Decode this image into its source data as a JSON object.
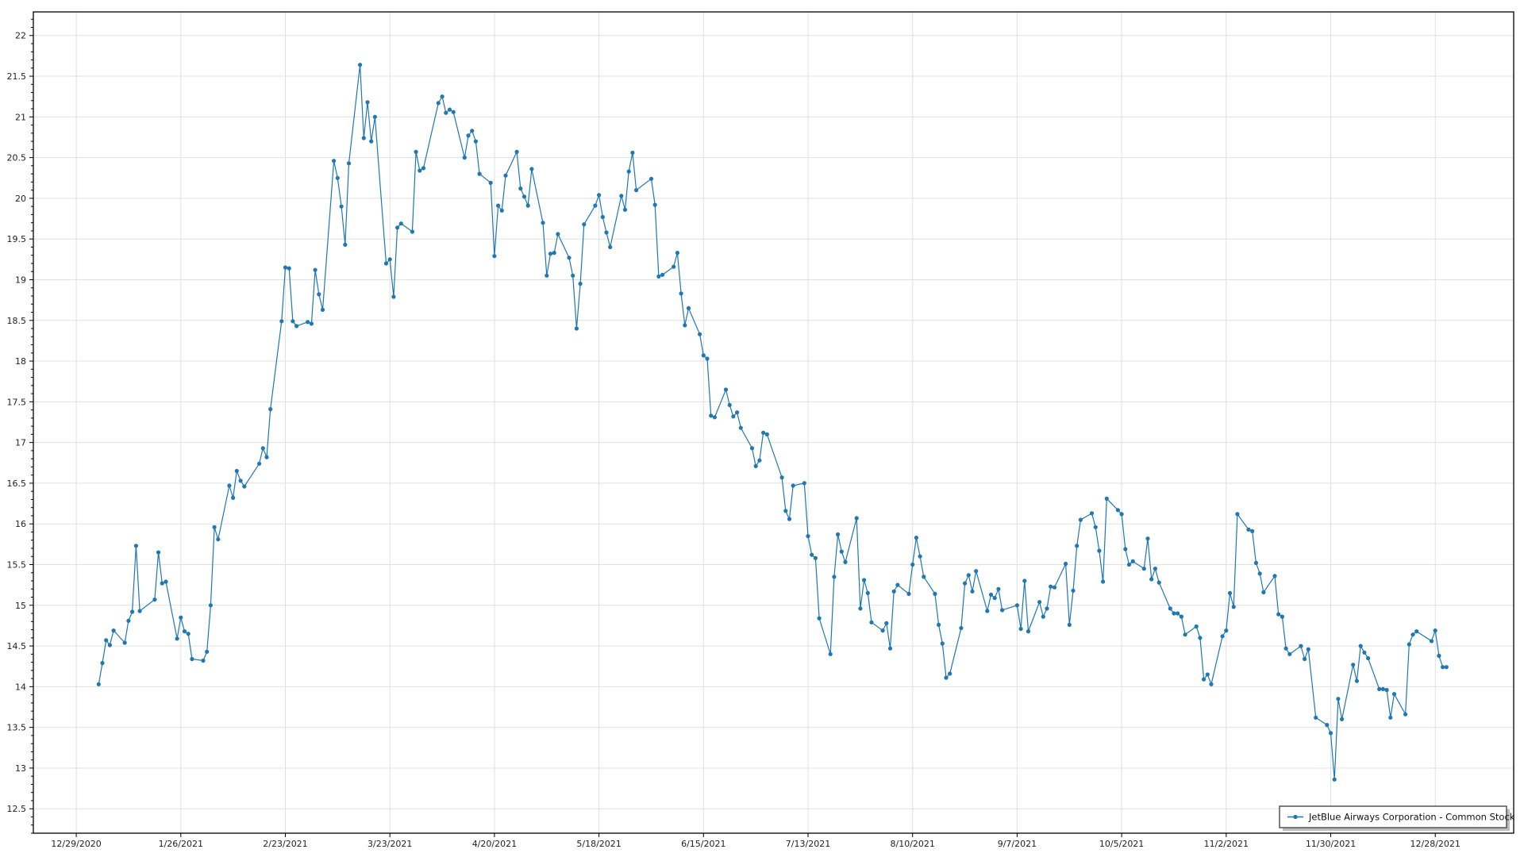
{
  "chart_data": {
    "type": "line",
    "title": "",
    "xlabel": "",
    "ylabel": "",
    "x_type": "date",
    "xlim": [
      "2020-12-17T12:00:00",
      "2022-01-18T00:00:00"
    ],
    "ylim": [
      12.2,
      22.29
    ],
    "grid": true,
    "legend_placement": "bottom-right",
    "colors": {
      "series": "#1f77b4",
      "grid": "#e0e0e0",
      "axis": "#000000"
    },
    "x_ticks": [
      "12/29/2020",
      "1/26/2021",
      "2/23/2021",
      "3/23/2021",
      "4/20/2021",
      "5/18/2021",
      "6/15/2021",
      "7/13/2021",
      "8/10/2021",
      "9/7/2021",
      "10/5/2021",
      "11/2/2021",
      "11/30/2021",
      "12/28/2021"
    ],
    "y_ticks": [
      "12.5",
      "13",
      "13.5",
      "14",
      "14.5",
      "15",
      "15.5",
      "16",
      "16.5",
      "17",
      "17.5",
      "18",
      "18.5",
      "19",
      "19.5",
      "20",
      "20.5",
      "21",
      "21.5",
      "22"
    ],
    "series": [
      {
        "name": "JetBlue Airways Corporation - Common Stock",
        "marker": "circle",
        "points": [
          [
            "2021-01-04",
            14.03
          ],
          [
            "2021-01-05",
            14.29
          ],
          [
            "2021-01-06",
            14.57
          ],
          [
            "2021-01-07",
            14.51
          ],
          [
            "2021-01-08",
            14.69
          ],
          [
            "2021-01-11",
            14.54
          ],
          [
            "2021-01-12",
            14.81
          ],
          [
            "2021-01-13",
            14.92
          ],
          [
            "2021-01-14",
            15.73
          ],
          [
            "2021-01-15",
            14.93
          ],
          [
            "2021-01-19",
            15.07
          ],
          [
            "2021-01-20",
            15.65
          ],
          [
            "2021-01-21",
            15.27
          ],
          [
            "2021-01-22",
            15.29
          ],
          [
            "2021-01-25",
            14.59
          ],
          [
            "2021-01-26",
            14.85
          ],
          [
            "2021-01-27",
            14.68
          ],
          [
            "2021-01-28",
            14.65
          ],
          [
            "2021-01-29",
            14.34
          ],
          [
            "2021-02-01",
            14.32
          ],
          [
            "2021-02-02",
            14.43
          ],
          [
            "2021-02-03",
            15.0
          ],
          [
            "2021-02-04",
            15.96
          ],
          [
            "2021-02-05",
            15.81
          ],
          [
            "2021-02-08",
            16.47
          ],
          [
            "2021-02-09",
            16.32
          ],
          [
            "2021-02-10",
            16.65
          ],
          [
            "2021-02-11",
            16.53
          ],
          [
            "2021-02-12",
            16.46
          ],
          [
            "2021-02-16",
            16.74
          ],
          [
            "2021-02-17",
            16.93
          ],
          [
            "2021-02-18",
            16.82
          ],
          [
            "2021-02-19",
            17.41
          ],
          [
            "2021-02-22",
            18.49
          ],
          [
            "2021-02-23",
            19.15
          ],
          [
            "2021-02-24",
            19.14
          ],
          [
            "2021-02-25",
            18.49
          ],
          [
            "2021-02-26",
            18.43
          ],
          [
            "2021-03-01",
            18.48
          ],
          [
            "2021-03-02",
            18.46
          ],
          [
            "2021-03-03",
            19.12
          ],
          [
            "2021-03-04",
            18.82
          ],
          [
            "2021-03-05",
            18.63
          ],
          [
            "2021-03-08",
            20.46
          ],
          [
            "2021-03-09",
            20.25
          ],
          [
            "2021-03-10",
            19.9
          ],
          [
            "2021-03-11",
            19.43
          ],
          [
            "2021-03-12",
            20.43
          ],
          [
            "2021-03-15",
            21.64
          ],
          [
            "2021-03-16",
            20.74
          ],
          [
            "2021-03-17",
            21.18
          ],
          [
            "2021-03-18",
            20.7
          ],
          [
            "2021-03-19",
            21.0
          ],
          [
            "2021-03-22",
            19.2
          ],
          [
            "2021-03-23",
            19.25
          ],
          [
            "2021-03-24",
            18.79
          ],
          [
            "2021-03-25",
            19.64
          ],
          [
            "2021-03-26",
            19.69
          ],
          [
            "2021-03-29",
            19.59
          ],
          [
            "2021-03-30",
            20.57
          ],
          [
            "2021-03-31",
            20.34
          ],
          [
            "2021-04-01",
            20.37
          ],
          [
            "2021-04-05",
            21.17
          ],
          [
            "2021-04-06",
            21.25
          ],
          [
            "2021-04-07",
            21.05
          ],
          [
            "2021-04-08",
            21.09
          ],
          [
            "2021-04-09",
            21.06
          ],
          [
            "2021-04-12",
            20.5
          ],
          [
            "2021-04-13",
            20.77
          ],
          [
            "2021-04-14",
            20.83
          ],
          [
            "2021-04-15",
            20.7
          ],
          [
            "2021-04-16",
            20.3
          ],
          [
            "2021-04-19",
            20.19
          ],
          [
            "2021-04-20",
            19.29
          ],
          [
            "2021-04-21",
            19.91
          ],
          [
            "2021-04-22",
            19.85
          ],
          [
            "2021-04-23",
            20.28
          ],
          [
            "2021-04-26",
            20.57
          ],
          [
            "2021-04-27",
            20.12
          ],
          [
            "2021-04-28",
            20.02
          ],
          [
            "2021-04-29",
            19.91
          ],
          [
            "2021-04-30",
            20.36
          ],
          [
            "2021-05-03",
            19.7
          ],
          [
            "2021-05-04",
            19.05
          ],
          [
            "2021-05-05",
            19.32
          ],
          [
            "2021-05-06",
            19.33
          ],
          [
            "2021-05-07",
            19.56
          ],
          [
            "2021-05-10",
            19.27
          ],
          [
            "2021-05-11",
            19.05
          ],
          [
            "2021-05-12",
            18.4
          ],
          [
            "2021-05-13",
            18.95
          ],
          [
            "2021-05-14",
            19.68
          ],
          [
            "2021-05-17",
            19.91
          ],
          [
            "2021-05-18",
            20.04
          ],
          [
            "2021-05-19",
            19.77
          ],
          [
            "2021-05-20",
            19.58
          ],
          [
            "2021-05-21",
            19.4
          ],
          [
            "2021-05-24",
            20.03
          ],
          [
            "2021-05-25",
            19.86
          ],
          [
            "2021-05-26",
            20.33
          ],
          [
            "2021-05-27",
            20.56
          ],
          [
            "2021-05-28",
            20.1
          ],
          [
            "2021-06-01",
            20.24
          ],
          [
            "2021-06-02",
            19.92
          ],
          [
            "2021-06-03",
            19.04
          ],
          [
            "2021-06-04",
            19.06
          ],
          [
            "2021-06-07",
            19.16
          ],
          [
            "2021-06-08",
            19.33
          ],
          [
            "2021-06-09",
            18.83
          ],
          [
            "2021-06-10",
            18.44
          ],
          [
            "2021-06-11",
            18.65
          ],
          [
            "2021-06-14",
            18.33
          ],
          [
            "2021-06-15",
            18.07
          ],
          [
            "2021-06-16",
            18.03
          ],
          [
            "2021-06-17",
            17.33
          ],
          [
            "2021-06-18",
            17.31
          ],
          [
            "2021-06-21",
            17.65
          ],
          [
            "2021-06-22",
            17.46
          ],
          [
            "2021-06-23",
            17.32
          ],
          [
            "2021-06-24",
            17.37
          ],
          [
            "2021-06-25",
            17.18
          ],
          [
            "2021-06-28",
            16.93
          ],
          [
            "2021-06-29",
            16.71
          ],
          [
            "2021-06-30",
            16.78
          ],
          [
            "2021-07-01",
            17.12
          ],
          [
            "2021-07-02",
            17.1
          ],
          [
            "2021-07-06",
            16.57
          ],
          [
            "2021-07-07",
            16.16
          ],
          [
            "2021-07-08",
            16.06
          ],
          [
            "2021-07-09",
            16.47
          ],
          [
            "2021-07-12",
            16.5
          ],
          [
            "2021-07-13",
            15.85
          ],
          [
            "2021-07-14",
            15.62
          ],
          [
            "2021-07-15",
            15.58
          ],
          [
            "2021-07-16",
            14.84
          ],
          [
            "2021-07-19",
            14.4
          ],
          [
            "2021-07-20",
            15.35
          ],
          [
            "2021-07-21",
            15.87
          ],
          [
            "2021-07-22",
            15.66
          ],
          [
            "2021-07-23",
            15.53
          ],
          [
            "2021-07-26",
            16.07
          ],
          [
            "2021-07-27",
            14.96
          ],
          [
            "2021-07-28",
            15.31
          ],
          [
            "2021-07-29",
            15.15
          ],
          [
            "2021-07-30",
            14.79
          ],
          [
            "2021-08-02",
            14.69
          ],
          [
            "2021-08-03",
            14.78
          ],
          [
            "2021-08-04",
            14.47
          ],
          [
            "2021-08-05",
            15.17
          ],
          [
            "2021-08-06",
            15.25
          ],
          [
            "2021-08-09",
            15.14
          ],
          [
            "2021-08-10",
            15.5
          ],
          [
            "2021-08-11",
            15.83
          ],
          [
            "2021-08-12",
            15.6
          ],
          [
            "2021-08-13",
            15.35
          ],
          [
            "2021-08-16",
            15.14
          ],
          [
            "2021-08-17",
            14.76
          ],
          [
            "2021-08-18",
            14.53
          ],
          [
            "2021-08-19",
            14.11
          ],
          [
            "2021-08-20",
            14.16
          ],
          [
            "2021-08-23",
            14.72
          ],
          [
            "2021-08-24",
            15.27
          ],
          [
            "2021-08-25",
            15.37
          ],
          [
            "2021-08-26",
            15.17
          ],
          [
            "2021-08-27",
            15.42
          ],
          [
            "2021-08-30",
            14.93
          ],
          [
            "2021-08-31",
            15.13
          ],
          [
            "2021-09-01",
            15.09
          ],
          [
            "2021-09-02",
            15.2
          ],
          [
            "2021-09-03",
            14.94
          ],
          [
            "2021-09-07",
            15.0
          ],
          [
            "2021-09-08",
            14.71
          ],
          [
            "2021-09-09",
            15.3
          ],
          [
            "2021-09-10",
            14.68
          ],
          [
            "2021-09-13",
            15.04
          ],
          [
            "2021-09-14",
            14.86
          ],
          [
            "2021-09-15",
            14.96
          ],
          [
            "2021-09-16",
            15.23
          ],
          [
            "2021-09-17",
            15.22
          ],
          [
            "2021-09-20",
            15.51
          ],
          [
            "2021-09-21",
            14.76
          ],
          [
            "2021-09-22",
            15.18
          ],
          [
            "2021-09-23",
            15.73
          ],
          [
            "2021-09-24",
            16.05
          ],
          [
            "2021-09-27",
            16.13
          ],
          [
            "2021-09-28",
            15.96
          ],
          [
            "2021-09-29",
            15.67
          ],
          [
            "2021-09-30",
            15.29
          ],
          [
            "2021-10-01",
            16.31
          ],
          [
            "2021-10-04",
            16.17
          ],
          [
            "2021-10-05",
            16.12
          ],
          [
            "2021-10-06",
            15.69
          ],
          [
            "2021-10-07",
            15.5
          ],
          [
            "2021-10-08",
            15.54
          ],
          [
            "2021-10-11",
            15.45
          ],
          [
            "2021-10-12",
            15.82
          ],
          [
            "2021-10-13",
            15.32
          ],
          [
            "2021-10-14",
            15.45
          ],
          [
            "2021-10-15",
            15.28
          ],
          [
            "2021-10-18",
            14.96
          ],
          [
            "2021-10-19",
            14.9
          ],
          [
            "2021-10-20",
            14.9
          ],
          [
            "2021-10-21",
            14.86
          ],
          [
            "2021-10-22",
            14.64
          ],
          [
            "2021-10-25",
            14.74
          ],
          [
            "2021-10-26",
            14.6
          ],
          [
            "2021-10-27",
            14.09
          ],
          [
            "2021-10-28",
            14.15
          ],
          [
            "2021-10-29",
            14.03
          ],
          [
            "2021-11-01",
            14.62
          ],
          [
            "2021-11-02",
            14.69
          ],
          [
            "2021-11-03",
            15.15
          ],
          [
            "2021-11-04",
            14.98
          ],
          [
            "2021-11-05",
            16.12
          ],
          [
            "2021-11-08",
            15.93
          ],
          [
            "2021-11-09",
            15.91
          ],
          [
            "2021-11-10",
            15.52
          ],
          [
            "2021-11-11",
            15.39
          ],
          [
            "2021-11-12",
            15.16
          ],
          [
            "2021-11-15",
            15.36
          ],
          [
            "2021-11-16",
            14.89
          ],
          [
            "2021-11-17",
            14.86
          ],
          [
            "2021-11-18",
            14.47
          ],
          [
            "2021-11-19",
            14.4
          ],
          [
            "2021-11-22",
            14.5
          ],
          [
            "2021-11-23",
            14.34
          ],
          [
            "2021-11-24",
            14.46
          ],
          [
            "2021-11-26",
            13.62
          ],
          [
            "2021-11-29",
            13.53
          ],
          [
            "2021-11-30",
            13.43
          ],
          [
            "2021-12-01",
            12.86
          ],
          [
            "2021-12-02",
            13.85
          ],
          [
            "2021-12-03",
            13.6
          ],
          [
            "2021-12-06",
            14.27
          ],
          [
            "2021-12-07",
            14.07
          ],
          [
            "2021-12-08",
            14.5
          ],
          [
            "2021-12-09",
            14.42
          ],
          [
            "2021-12-10",
            14.35
          ],
          [
            "2021-12-13",
            13.97
          ],
          [
            "2021-12-14",
            13.97
          ],
          [
            "2021-12-15",
            13.96
          ],
          [
            "2021-12-16",
            13.62
          ],
          [
            "2021-12-17",
            13.91
          ],
          [
            "2021-12-20",
            13.66
          ],
          [
            "2021-12-21",
            14.52
          ],
          [
            "2021-12-22",
            14.64
          ],
          [
            "2021-12-23",
            14.68
          ],
          [
            "2021-12-27",
            14.56
          ],
          [
            "2021-12-28",
            14.69
          ],
          [
            "2021-12-29",
            14.38
          ],
          [
            "2021-12-30",
            14.24
          ],
          [
            "2021-12-31",
            14.24
          ]
        ]
      }
    ]
  }
}
